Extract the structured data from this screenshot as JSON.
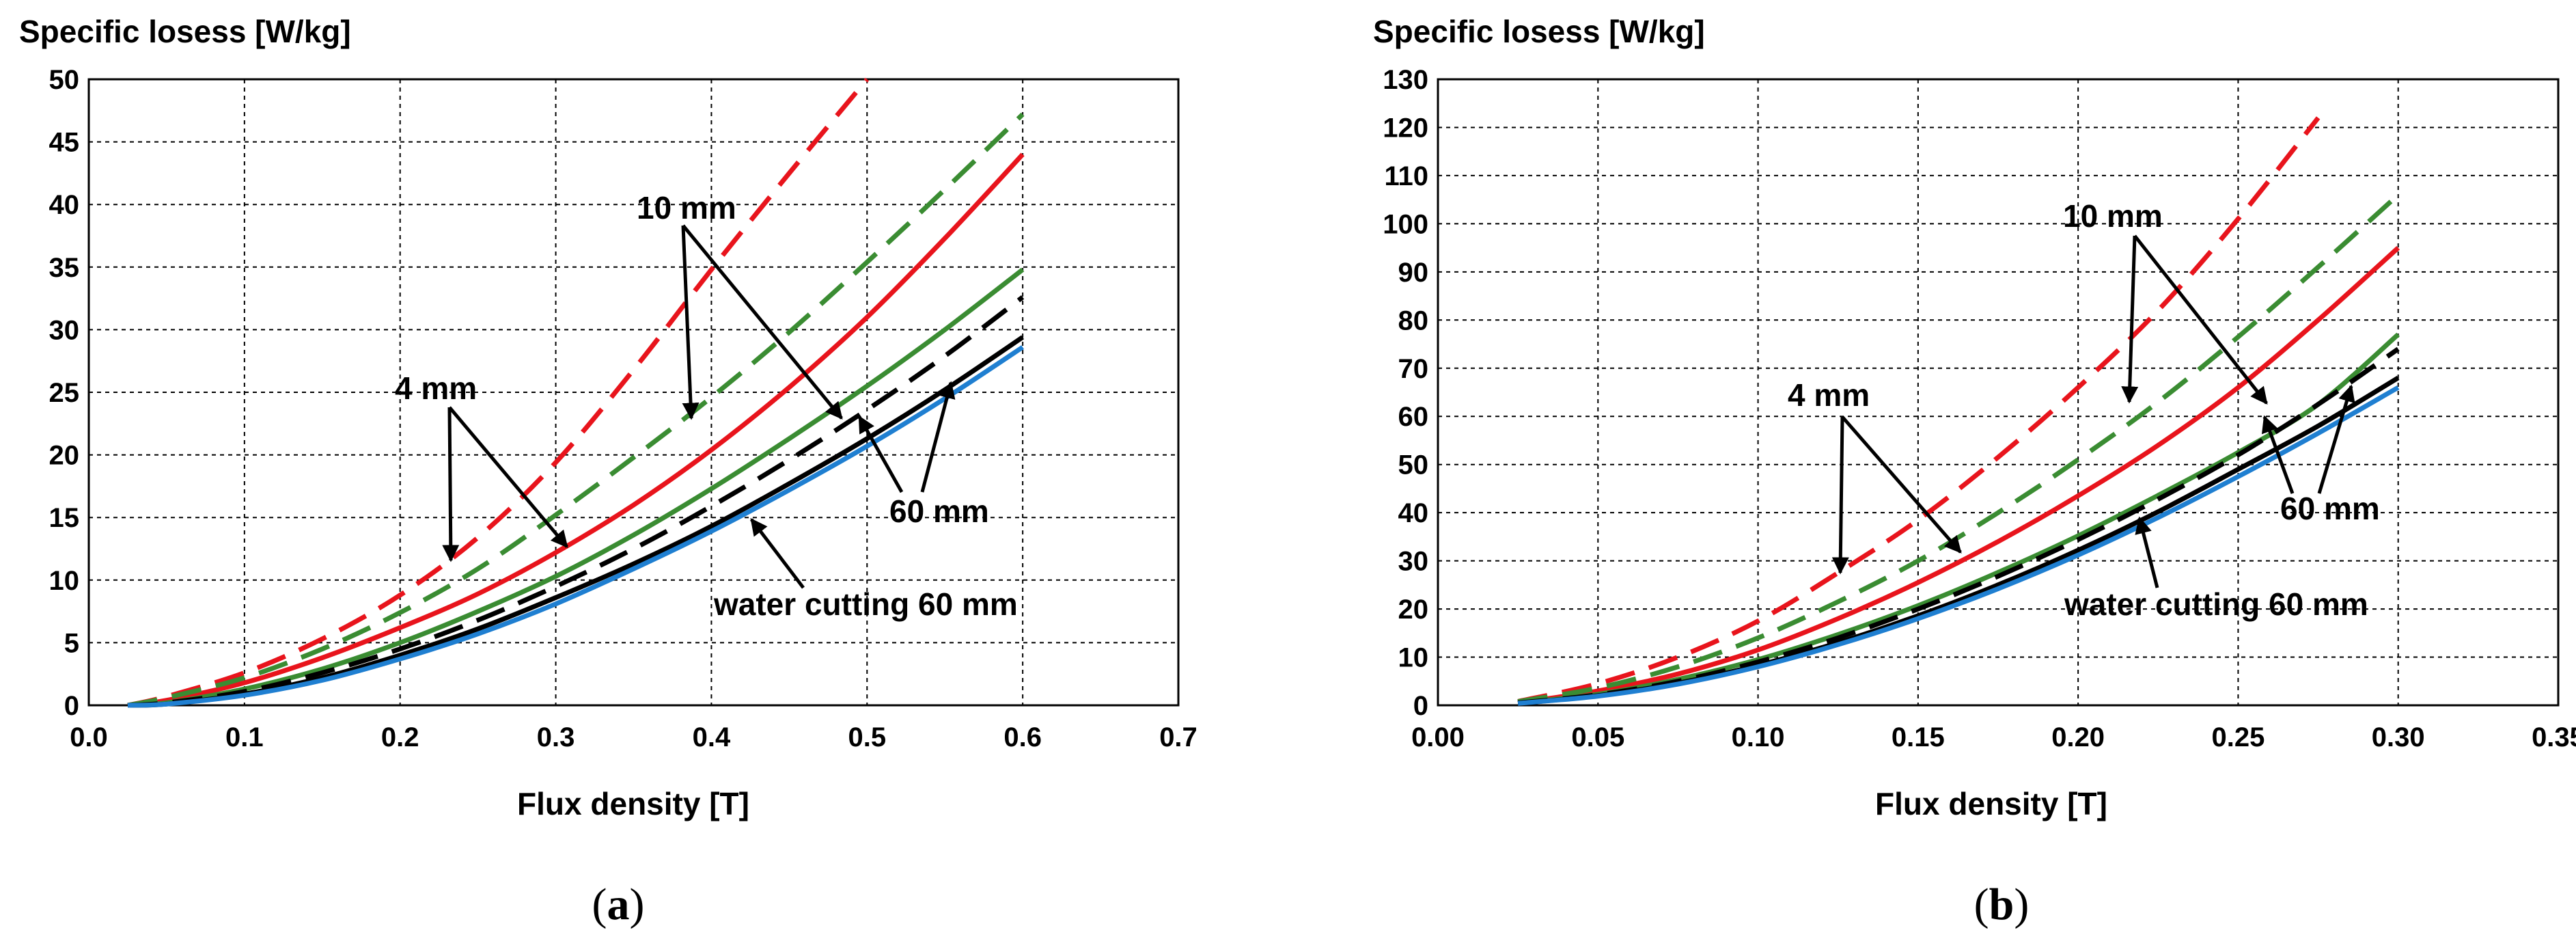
{
  "chart_data": [
    {
      "type": "line",
      "panel_label": "a",
      "title": "Specific losess [W/kg]",
      "xlabel": "Flux density [T]",
      "ylabel": "Specific losess [W/kg]",
      "xlim": [
        0.0,
        0.7
      ],
      "ylim": [
        0,
        50
      ],
      "x_ticks": [
        "0.0",
        "0.1",
        "0.2",
        "0.3",
        "0.4",
        "0.5",
        "0.6",
        "0.7"
      ],
      "y_ticks": [
        "0",
        "5",
        "10",
        "15",
        "20",
        "25",
        "30",
        "35",
        "40",
        "45",
        "50"
      ],
      "grid": true,
      "x": [
        0.025,
        0.05,
        0.1,
        0.15,
        0.2,
        0.25,
        0.3,
        0.35,
        0.4,
        0.45,
        0.5,
        0.55,
        0.6
      ],
      "series": [
        {
          "name": "4 mm",
          "style": "dashed",
          "color": "#e8141c",
          "values": [
            0.0,
            0.7,
            2.6,
            5.3,
            8.8,
            13.4,
            19.4,
            26.8,
            34.8,
            42.5,
            50.0,
            null,
            null
          ]
        },
        {
          "name": "4 mm",
          "style": "solid",
          "color": "#e8141c",
          "values": [
            0.0,
            0.4,
            1.8,
            3.8,
            6.2,
            8.9,
            12.2,
            16.0,
            20.4,
            25.4,
            31.0,
            37.3,
            44.0
          ]
        },
        {
          "name": "10 mm",
          "style": "dashed",
          "color": "#3a8c32",
          "values": [
            0.0,
            0.6,
            2.2,
            4.5,
            7.4,
            10.9,
            15.2,
            19.8,
            24.6,
            29.8,
            35.4,
            41.2,
            47.2
          ]
        },
        {
          "name": "10 mm",
          "style": "solid",
          "color": "#3a8c32",
          "values": [
            0.0,
            0.2,
            1.3,
            2.9,
            5.0,
            7.5,
            10.3,
            13.6,
            17.3,
            21.3,
            25.5,
            30.0,
            34.8
          ]
        },
        {
          "name": "60 mm",
          "style": "dashed",
          "color": "#000000",
          "values": [
            0.0,
            0.2,
            1.1,
            2.6,
            4.5,
            6.8,
            9.5,
            12.5,
            15.9,
            19.6,
            23.6,
            27.9,
            32.6
          ]
        },
        {
          "name": "60 mm",
          "style": "solid",
          "color": "#000000",
          "values": [
            0.0,
            0.1,
            0.9,
            2.2,
            4.0,
            6.1,
            8.6,
            11.3,
            14.3,
            17.7,
            21.3,
            25.2,
            29.4
          ]
        },
        {
          "name": "water cutting 60 mm",
          "style": "solid",
          "color": "#1f7fd1",
          "values": [
            0.0,
            0.1,
            0.8,
            2.0,
            3.7,
            5.7,
            8.1,
            10.9,
            13.9,
            17.2,
            20.7,
            24.5,
            28.6
          ]
        }
      ],
      "annotations": [
        "10 mm",
        "4 mm",
        "60 mm",
        "water cutting 60 mm"
      ]
    },
    {
      "type": "line",
      "panel_label": "b",
      "title": "Specific losess [W/kg]",
      "xlabel": "Flux density [T]",
      "ylabel": "Specific losess [W/kg]",
      "xlim": [
        0.0,
        0.35
      ],
      "ylim": [
        0,
        130
      ],
      "x_ticks": [
        "0.00",
        "0.05",
        "0.10",
        "0.15",
        "0.20",
        "0.25",
        "0.30",
        "0.35"
      ],
      "y_ticks": [
        "0",
        "10",
        "20",
        "30",
        "40",
        "50",
        "60",
        "70",
        "80",
        "90",
        "100",
        "110",
        "120",
        "130"
      ],
      "grid": true,
      "x": [
        0.025,
        0.05,
        0.075,
        0.1,
        0.125,
        0.15,
        0.175,
        0.2,
        0.225,
        0.25,
        0.275,
        0.3
      ],
      "series": [
        {
          "name": "4 mm",
          "style": "dashed",
          "color": "#e8141c",
          "values": [
            0.8,
            4.5,
            10.0,
            17.5,
            27.5,
            38.5,
            51.5,
            66.0,
            82.0,
            101.0,
            122.0,
            null
          ]
        },
        {
          "name": "4 mm",
          "style": "solid",
          "color": "#e8141c",
          "values": [
            0.5,
            3.0,
            6.5,
            11.5,
            18.0,
            25.5,
            34.0,
            43.5,
            54.0,
            66.0,
            80.0,
            95.0
          ]
        },
        {
          "name": "10 mm",
          "style": "dashed",
          "color": "#3a8c32",
          "values": [
            0.8,
            3.6,
            8.0,
            14.0,
            21.5,
            30.0,
            40.0,
            51.0,
            63.0,
            76.5,
            91.0,
            106.0
          ]
        },
        {
          "name": "10 mm",
          "style": "solid",
          "color": "#3a8c32",
          "values": [
            0.5,
            2.3,
            5.4,
            9.5,
            14.7,
            20.7,
            27.6,
            35.2,
            43.6,
            52.5,
            62.5,
            77.0
          ]
        },
        {
          "name": "60 mm",
          "style": "dashed",
          "color": "#000000",
          "values": [
            0.5,
            2.2,
            5.0,
            9.0,
            14.0,
            20.0,
            26.8,
            34.4,
            42.8,
            52.0,
            62.5,
            74.0
          ]
        },
        {
          "name": "60 mm",
          "style": "solid",
          "color": "#000000",
          "values": [
            0.4,
            2.0,
            4.6,
            8.3,
            13.0,
            18.6,
            25.0,
            32.2,
            40.2,
            49.0,
            58.0,
            68.0
          ]
        },
        {
          "name": "water cutting 60 mm",
          "style": "solid",
          "color": "#1f7fd1",
          "values": [
            0.4,
            1.9,
            4.4,
            8.0,
            12.6,
            18.0,
            24.2,
            31.2,
            39.0,
            47.5,
            56.5,
            66.0
          ]
        }
      ],
      "annotations": [
        "10 mm",
        "4 mm",
        "60 mm",
        "water cutting 60 mm"
      ]
    }
  ]
}
